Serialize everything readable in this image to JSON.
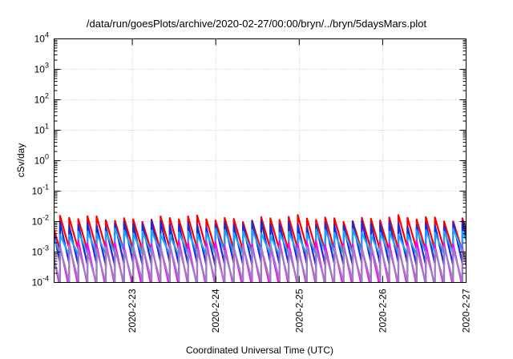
{
  "chart_data": {
    "type": "line",
    "title": "/data/run/goesPlots/archive/2020-02-27/00:00/bryn/../bryn/5daysMars.plot",
    "xlabel": "Coordinated Universal Time (UTC)",
    "ylabel": "cSv/day",
    "y_scale": "log",
    "ylim": [
      0.0001,
      10000
    ],
    "y_ticks": [
      {
        "value": 0.0001,
        "base": "10",
        "exp": "-4"
      },
      {
        "value": 0.001,
        "base": "10",
        "exp": "-3"
      },
      {
        "value": 0.01,
        "base": "10",
        "exp": "-2"
      },
      {
        "value": 0.1,
        "base": "10",
        "exp": "-1"
      },
      {
        "value": 1,
        "base": "10",
        "exp": "0"
      },
      {
        "value": 10,
        "base": "10",
        "exp": "1"
      },
      {
        "value": 100,
        "base": "10",
        "exp": "2"
      },
      {
        "value": 1000,
        "base": "10",
        "exp": "3"
      },
      {
        "value": 10000,
        "base": "10",
        "exp": "4"
      }
    ],
    "xlim": [
      "2020-02-22T01:30",
      "2020-02-27T00:00"
    ],
    "x_ticks": [
      "2020-2-23",
      "2020-2-24",
      "2020-2-25",
      "2020-2-26",
      "2020-2-27"
    ],
    "grid": true,
    "legend": "none",
    "sawtooth_period_hours": 2.63,
    "series": [
      {
        "color": "#ff0000",
        "peak": 0.0125,
        "trough": 0.00115
      },
      {
        "color": "#1a2bd6",
        "peak": 0.0085,
        "trough": 0.0004
      },
      {
        "color": "#20a0ff",
        "peak": 0.0045,
        "trough": 0.0009
      },
      {
        "color": "#ff00ff",
        "peak": 0.0018,
        "trough": 7e-05
      },
      {
        "color": "#9a7fc0",
        "peak": 0.0014,
        "trough": 0.0001
      }
    ]
  }
}
